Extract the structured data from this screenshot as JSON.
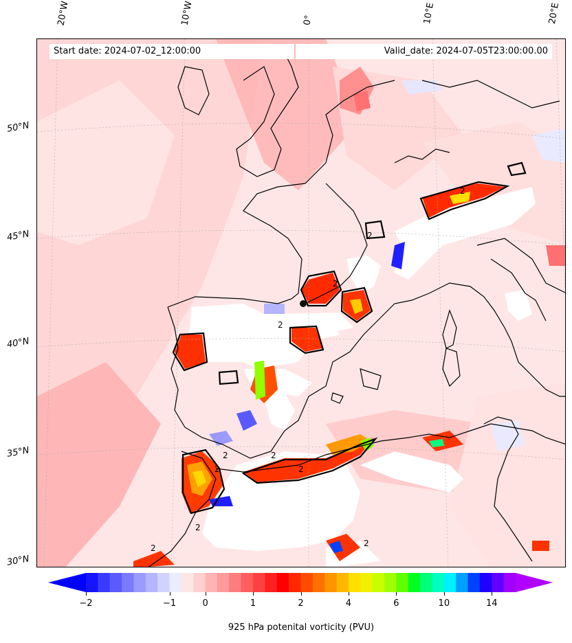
{
  "map": {
    "start_date": "Start date: 2024-07-02_12:00:00",
    "valid_date": "Valid_date: 2024-07-05T23:00:00.00",
    "lon_labels": [
      "20°W",
      "10°W",
      "0°",
      "10°E",
      "20°E"
    ],
    "lat_labels": [
      "50°N",
      "45°N",
      "40°N",
      "35°N",
      "30°N"
    ],
    "contour_label": "2"
  },
  "colorbar": {
    "label": "925 hPa potenital vorticity (PVU)",
    "tick_labels": [
      "−2",
      "−1",
      "0",
      "1",
      "2",
      "4",
      "6",
      "10",
      "14"
    ],
    "colors": [
      "#1414ff",
      "#3a3aff",
      "#5a5aff",
      "#7a7aff",
      "#9a9aff",
      "#b4b4ff",
      "#d2d2ff",
      "#ececff",
      "#ffe6e6",
      "#ffd0d0",
      "#ffb4b4",
      "#ff9a9a",
      "#ff7c7c",
      "#ff5e5e",
      "#ff4040",
      "#ff2020",
      "#ff0000",
      "#ff2800",
      "#ff4c00",
      "#ff7000",
      "#ff9400",
      "#ffb800",
      "#ffe000",
      "#f0f000",
      "#c8ff00",
      "#a0ff00",
      "#60ff00",
      "#00ff20",
      "#00ff7a",
      "#00ffc0",
      "#00f0ff",
      "#00a0ff",
      "#0040ff",
      "#2000ff",
      "#6000ff",
      "#a000ff"
    ],
    "under_color": "#0000ff",
    "over_color": "#b000ff"
  }
}
